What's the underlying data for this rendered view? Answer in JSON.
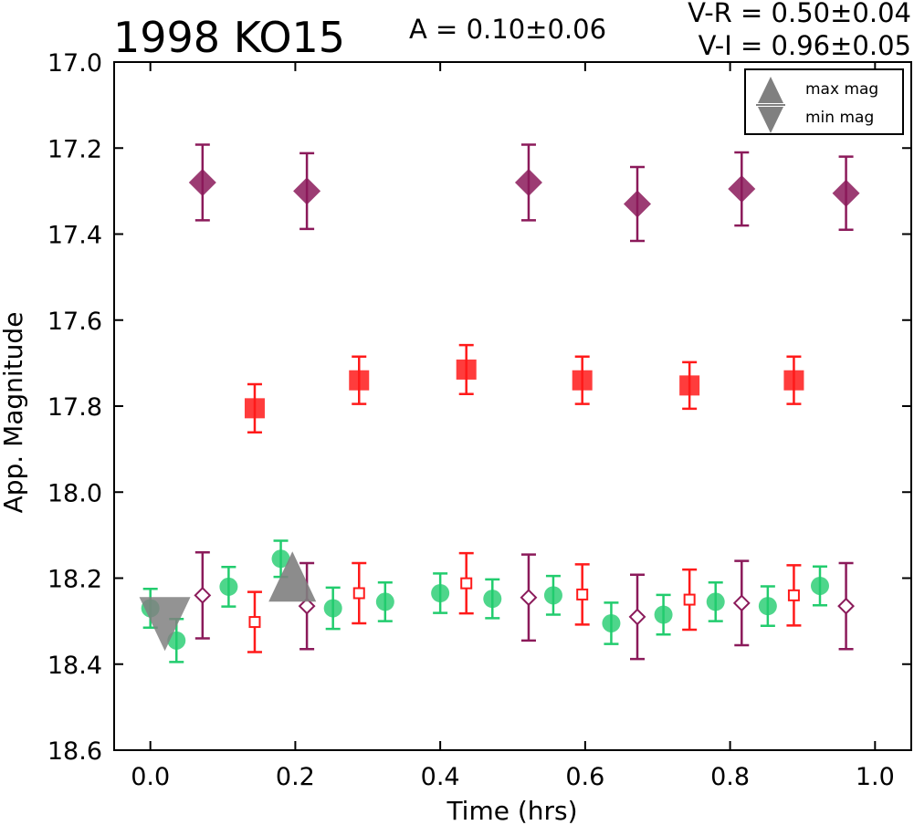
{
  "chart_data": {
    "type": "scatter",
    "title": "1998 KO15",
    "annotations": {
      "amplitude": "A  = 0.10±0.06",
      "v_minus_r": "V-R = 0.50±0.04",
      "v_minus_i": "V-I  = 0.96±0.05"
    },
    "xlabel": "Time (hrs)",
    "ylabel": "App. Magnitude",
    "xlim": [
      -0.05,
      1.05
    ],
    "ylim": [
      17.0,
      18.6
    ],
    "y_inverted": true,
    "grid": false,
    "xticks": [
      "0.0",
      "0.2",
      "0.4",
      "0.6",
      "0.8",
      "1.0"
    ],
    "yticks": [
      "17.0",
      "17.2",
      "17.4",
      "17.6",
      "17.8",
      "18.0",
      "18.2",
      "18.4",
      "18.6"
    ],
    "legend": {
      "position": "top-right",
      "entries": [
        {
          "label": "max mag",
          "marker": "triangle-up"
        },
        {
          "label": "min mag",
          "marker": "triangle-down"
        }
      ]
    },
    "series": [
      {
        "marker": "diamond-filled",
        "color": "#8b1a5a",
        "x": [
          0.072,
          0.216,
          0.522,
          0.672,
          0.816,
          0.96
        ],
        "y": [
          17.28,
          17.3,
          17.28,
          17.33,
          17.295,
          17.305
        ],
        "err": [
          0.088,
          0.088,
          0.088,
          0.086,
          0.085,
          0.085
        ]
      },
      {
        "marker": "square-filled",
        "color": "#ff1a1a",
        "x": [
          0.144,
          0.288,
          0.436,
          0.596,
          0.744,
          0.888
        ],
        "y": [
          17.805,
          17.74,
          17.715,
          17.74,
          17.752,
          17.74
        ],
        "err": [
          0.056,
          0.055,
          0.057,
          0.055,
          0.054,
          0.055
        ]
      },
      {
        "marker": "circle-filled",
        "color": "#22cc6e",
        "x": [
          0.0,
          0.036,
          0.108,
          0.18,
          0.252,
          0.324,
          0.4,
          0.472,
          0.556,
          0.636,
          0.708,
          0.78,
          0.852,
          0.924
        ],
        "y": [
          18.27,
          18.345,
          18.22,
          18.155,
          18.27,
          18.255,
          18.235,
          18.248,
          18.24,
          18.305,
          18.285,
          18.255,
          18.265,
          18.218
        ],
        "err": [
          0.045,
          0.05,
          0.046,
          0.042,
          0.048,
          0.045,
          0.046,
          0.045,
          0.045,
          0.048,
          0.046,
          0.045,
          0.046,
          0.045
        ]
      },
      {
        "marker": "diamond-open",
        "color": "#8b1a5a",
        "x": [
          0.072,
          0.216,
          0.522,
          0.672,
          0.816,
          0.96
        ],
        "y": [
          18.24,
          18.265,
          18.245,
          18.29,
          18.258,
          18.265
        ],
        "err": [
          0.1,
          0.1,
          0.1,
          0.098,
          0.098,
          0.1
        ]
      },
      {
        "marker": "square-open",
        "color": "#ff1a1a",
        "x": [
          0.144,
          0.288,
          0.436,
          0.596,
          0.744,
          0.888
        ],
        "y": [
          18.302,
          18.235,
          18.212,
          18.238,
          18.25,
          18.24
        ],
        "err": [
          0.07,
          0.07,
          0.07,
          0.07,
          0.07,
          0.07
        ]
      },
      {
        "marker": "triangle-up-large",
        "color": "#808080",
        "x": [
          0.196
        ],
        "y": [
          18.21
        ]
      },
      {
        "marker": "triangle-down-large",
        "color": "#808080",
        "x": [
          0.02
        ],
        "y": [
          18.295
        ]
      }
    ]
  }
}
